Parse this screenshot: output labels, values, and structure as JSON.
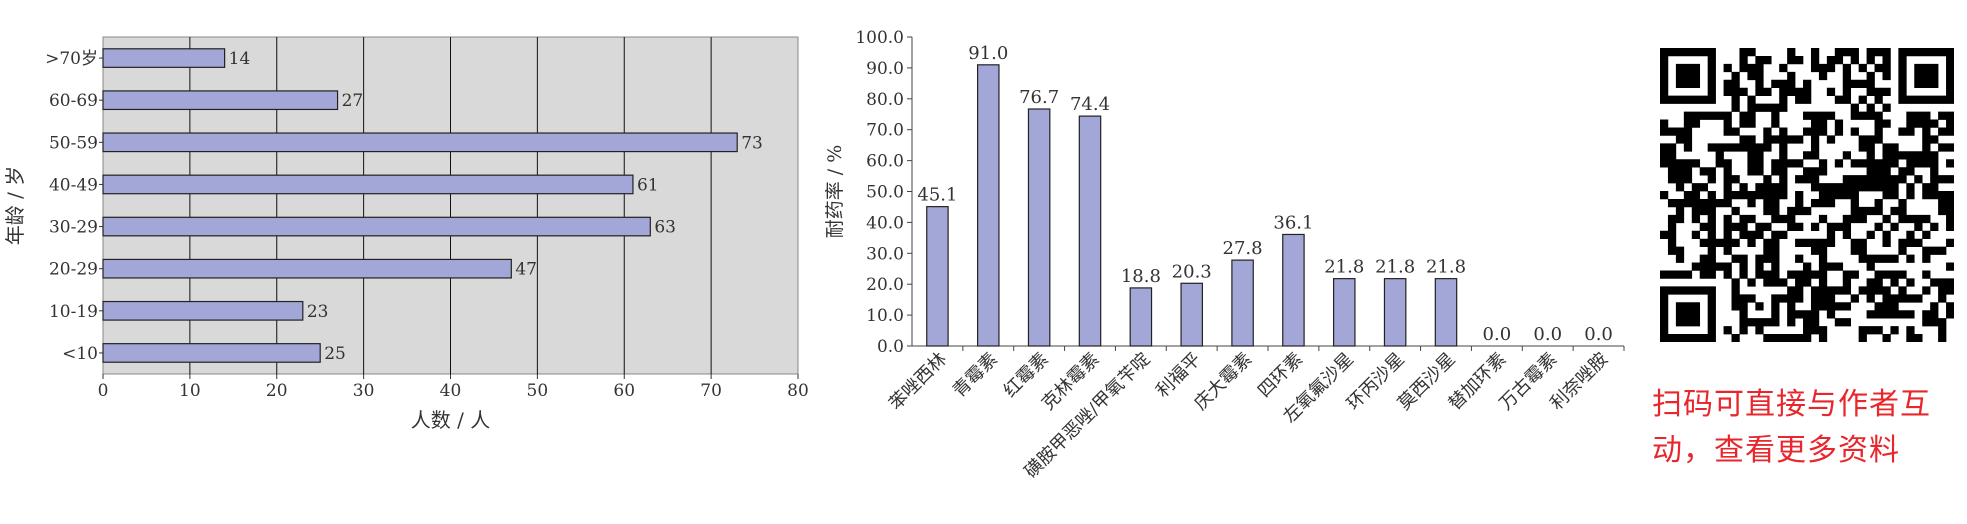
{
  "chart_data": [
    {
      "type": "bar",
      "orientation": "horizontal",
      "categories": [
        "<10",
        "10-19",
        "20-29",
        "30-29",
        "40-49",
        "50-59",
        "60-69",
        ">70岁"
      ],
      "values": [
        25,
        23,
        47,
        63,
        61,
        73,
        27,
        14
      ],
      "xlabel": "人数 / 人",
      "ylabel": "年龄 / 岁",
      "xlim": [
        0,
        80
      ],
      "xticks": [
        "0",
        "10",
        "20",
        "30",
        "40",
        "50",
        "60",
        "70",
        "80"
      ],
      "grid": "vertical",
      "bar_color": "#a3a7d8",
      "plot_bg": "#d9d9d9"
    },
    {
      "type": "bar",
      "categories": [
        "苯唑西林",
        "青霉素",
        "红霉素",
        "克林霉素",
        "磺胺甲恶唑/甲氧苄啶",
        "利福平",
        "庆大霉素",
        "四环素",
        "左氧氟沙星",
        "环丙沙星",
        "莫西沙星",
        "替加环素",
        "万古霉素",
        "利奈唑胺"
      ],
      "values": [
        45.1,
        91.0,
        76.7,
        74.4,
        18.8,
        20.3,
        27.8,
        36.1,
        21.8,
        21.8,
        21.8,
        0.0,
        0.0,
        0.0
      ],
      "value_labels": [
        "45.1",
        "91.0",
        "76.7",
        "74.4",
        "18.8",
        "20.3",
        "27.8",
        "36.1",
        "21.8",
        "21.8",
        "21.8",
        "0.0",
        "0.0",
        "0.0"
      ],
      "ylabel": "耐药率 / %",
      "ylim": [
        0,
        100
      ],
      "yticks": [
        "0.0",
        "10.0",
        "20.0",
        "30.0",
        "40.0",
        "50.0",
        "60.0",
        "70.0",
        "80.0",
        "90.0",
        "100.0"
      ],
      "grid": "none",
      "bar_color": "#a3a7d8"
    }
  ],
  "qr": {
    "caption_line1": "扫码可直接与作者互",
    "caption_line2": "动，查看更多资料",
    "caption_color": "#e8262b",
    "icon": "qr-code-icon"
  }
}
